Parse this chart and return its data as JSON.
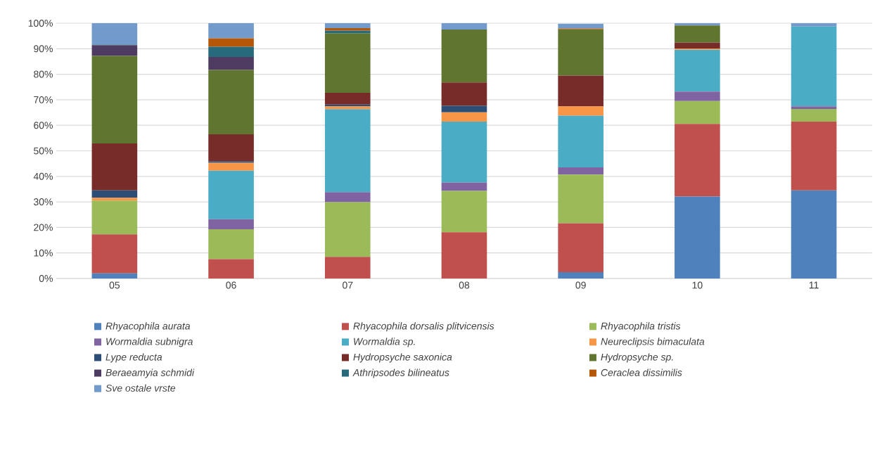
{
  "chart_data": {
    "type": "bar",
    "stacked": true,
    "grid": "y",
    "legend": "bottom",
    "categories": [
      "05",
      "06",
      "07",
      "08",
      "09",
      "10",
      "11"
    ],
    "ylim": [
      0,
      100
    ],
    "yticks": [
      {
        "value": 0,
        "label": "0%"
      },
      {
        "value": 10,
        "label": "10%"
      },
      {
        "value": 20,
        "label": "20%"
      },
      {
        "value": 30,
        "label": "30%"
      },
      {
        "value": 40,
        "label": "40%"
      },
      {
        "value": 50,
        "label": "50%"
      },
      {
        "value": 60,
        "label": "60%"
      },
      {
        "value": 70,
        "label": "70%"
      },
      {
        "value": 80,
        "label": "80%"
      },
      {
        "value": 90,
        "label": "90%"
      },
      {
        "value": 100,
        "label": "100%"
      }
    ],
    "series": [
      {
        "name": "Rhyacophila aurata",
        "color": "#4f81bd",
        "values": [
          2.0,
          0,
          0,
          0,
          2.5,
          32.1,
          34.5
        ]
      },
      {
        "name": "Rhyacophila dorsalis plitvicensis",
        "color": "#c0504d",
        "values": [
          15.3,
          7.6,
          8.5,
          18.1,
          19.1,
          28.4,
          26.9
        ]
      },
      {
        "name": "Rhyacophila tristis",
        "color": "#9bbb59",
        "values": [
          13.2,
          11.7,
          21.4,
          16.2,
          19.1,
          9.0,
          5.0
        ]
      },
      {
        "name": "Wormaldia subnigra",
        "color": "#8064a2",
        "values": [
          0,
          3.9,
          3.9,
          3.3,
          2.8,
          3.7,
          1.0
        ]
      },
      {
        "name": "Wormaldia sp.",
        "color": "#4bacc6",
        "values": [
          0,
          19.0,
          32.5,
          23.8,
          20.3,
          16.4,
          31.3
        ]
      },
      {
        "name": "Neureclipsis bimaculata",
        "color": "#f79646",
        "values": [
          1.1,
          3.1,
          1.1,
          3.7,
          3.6,
          0.5,
          0
        ]
      },
      {
        "name": "Lype reducta",
        "color": "#2c4d75",
        "values": [
          2.9,
          0.6,
          0.7,
          2.5,
          null,
          0,
          0
        ]
      },
      {
        "name": "Hydropsyche saxonica",
        "color": "#772c2a",
        "values": [
          18.4,
          10.6,
          4.6,
          9.2,
          12.1,
          2.3,
          0
        ]
      },
      {
        "name": "Hydropsyche sp.",
        "color": "#5f7530",
        "values": [
          34.3,
          25.2,
          23.4,
          20.7,
          18.1,
          6.7,
          0
        ]
      },
      {
        "name": "Beraeamyia schmidi",
        "color": "#4d3b62",
        "values": [
          4.2,
          5.1,
          0,
          0,
          0,
          0,
          0
        ]
      },
      {
        "name": "Athripsodes bilineatus",
        "color": "#276a7c",
        "values": [
          0.2,
          4.0,
          1.0,
          0,
          0,
          0,
          0
        ]
      },
      {
        "name": "Ceraclea dissimilis",
        "color": "#b65708",
        "values": [
          0,
          3.3,
          1.0,
          0,
          0.3,
          0,
          0
        ]
      },
      {
        "name": "Sve ostale vrste",
        "color": "#729aca",
        "values": [
          8.4,
          5.9,
          1.9,
          2.5,
          1.9,
          0.9,
          1.3
        ]
      }
    ]
  }
}
